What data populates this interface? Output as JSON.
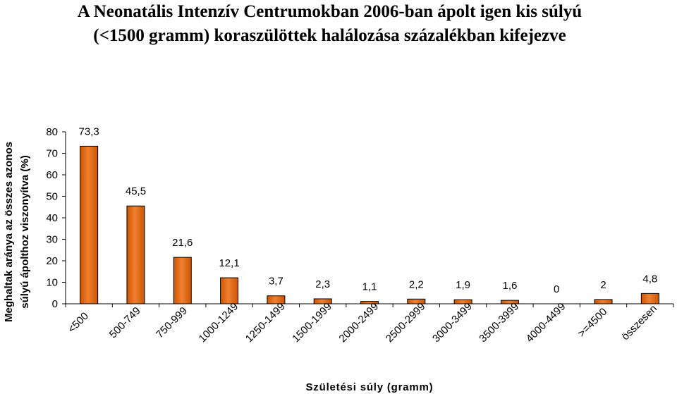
{
  "chart_data": {
    "type": "bar",
    "title_line1": "A Neonatális Intenzív Centrumokban 2006-ban ápolt igen kis súlyú",
    "title_line2": "(<1500 gramm) koraszülöttek halálozása százalékban kifejezve",
    "ylabel_line1": "Meghaltak aránya az összes azonos",
    "ylabel_line2": "súlyú ápolthoz viszonyítva (%)",
    "xlabel": "Születési súly (gramm)",
    "categories": [
      "<500",
      "500-749",
      "750-999",
      "1000-1249",
      "1250-1499",
      "1500-1999",
      "2000-2499",
      "2500-2999",
      "3000-3499",
      "3500-3999",
      "4000-4499",
      ">=4500",
      "összesen"
    ],
    "values": [
      73.3,
      45.5,
      21.6,
      12.1,
      3.7,
      2.3,
      1.1,
      2.2,
      1.9,
      1.6,
      0,
      2,
      4.8
    ],
    "value_labels": [
      "73,3",
      "45,5",
      "21,6",
      "12,1",
      "3,7",
      "2,3",
      "1,1",
      "2,2",
      "1,9",
      "1,6",
      "0",
      "2",
      "4,8"
    ],
    "ylim": [
      0,
      80
    ],
    "yticks": [
      0,
      10,
      20,
      30,
      40,
      50,
      60,
      70,
      80
    ],
    "grid": false,
    "legend": "none",
    "bar_color": "#cc5500",
    "bar_highlight": "#f08030",
    "bar_edge": "#000000"
  }
}
